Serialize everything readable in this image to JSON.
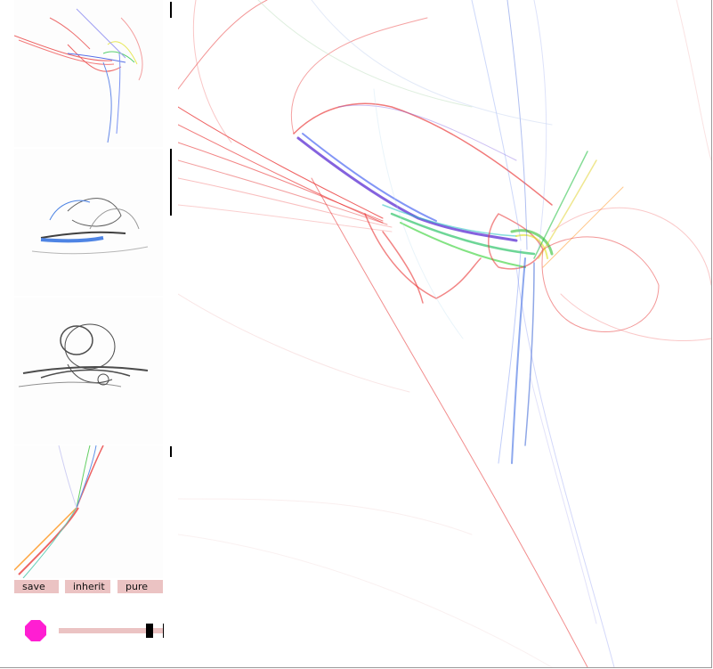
{
  "buttons": {
    "save": "save",
    "inherit": "inherit",
    "pure": "pure"
  },
  "swatch_color": "#ff1ed2",
  "slider_value": 0.9,
  "icons": {
    "swatch": "color-swatch-octagon"
  }
}
